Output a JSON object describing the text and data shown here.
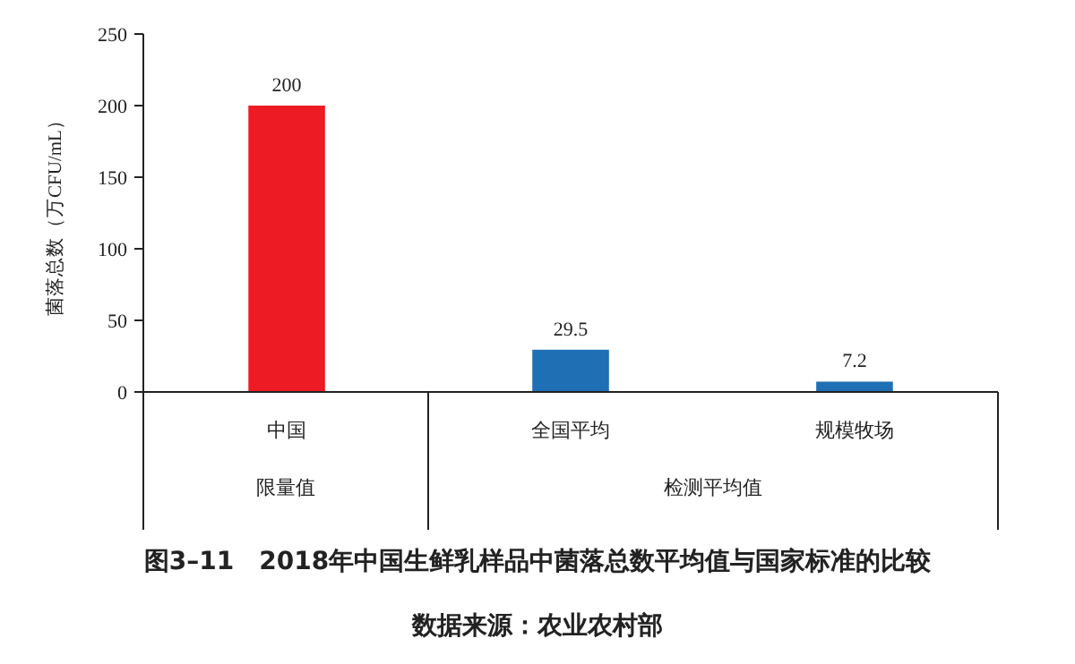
{
  "chart_data": {
    "type": "bar",
    "title": "图3–11　2018年中国生鲜乳样品中菌落总数平均值与国家标准的比较",
    "ylabel": "菌落总数（万CFU/mL）",
    "categories": [
      "中国",
      "全国平均",
      "规模牧场"
    ],
    "values": [
      200,
      29.5,
      7.2
    ],
    "colors": [
      "#ed1c24",
      "#1f6fb5",
      "#1f6fb5"
    ],
    "ylim": [
      0,
      250
    ],
    "yticks": [
      0,
      50,
      100,
      150,
      200,
      250
    ],
    "data_labels": true,
    "grid": false,
    "annotations": [
      "限量值",
      "检测平均值",
      "数据来源：农业农村部"
    ]
  }
}
